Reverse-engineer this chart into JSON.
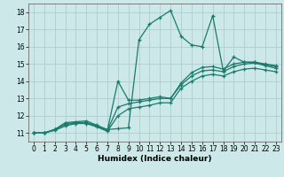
{
  "title": "",
  "xlabel": "Humidex (Indice chaleur)",
  "bg_color": "#cce8e8",
  "line_color": "#1a7a6e",
  "grid_color": "#b0cccc",
  "lines": [
    {
      "x": [
        0,
        1,
        2,
        3,
        4,
        5,
        6,
        7,
        8,
        9,
        10,
        11,
        12,
        13,
        14,
        15,
        16,
        17,
        18,
        19,
        20,
        21,
        22,
        23
      ],
      "y": [
        11,
        11,
        11.2,
        11.6,
        11.65,
        11.7,
        11.45,
        11.2,
        11.25,
        11.3,
        16.4,
        17.3,
        17.7,
        18.1,
        16.6,
        16.1,
        16.0,
        17.8,
        14.6,
        15.4,
        15.1,
        15.1,
        15.0,
        14.9
      ]
    },
    {
      "x": [
        0,
        1,
        2,
        3,
        4,
        5,
        6,
        7,
        8,
        9,
        10,
        11,
        12,
        13,
        14,
        15,
        16,
        17,
        18,
        19,
        20,
        21,
        22,
        23
      ],
      "y": [
        11,
        11,
        11.2,
        11.5,
        11.6,
        11.6,
        11.4,
        11.15,
        14.0,
        12.9,
        12.9,
        13.0,
        13.1,
        13.0,
        13.9,
        14.5,
        14.8,
        14.85,
        14.7,
        15.0,
        15.1,
        15.1,
        14.95,
        14.85
      ]
    },
    {
      "x": [
        0,
        1,
        2,
        3,
        4,
        5,
        6,
        7,
        8,
        9,
        10,
        11,
        12,
        13,
        14,
        15,
        16,
        17,
        18,
        19,
        20,
        21,
        22,
        23
      ],
      "y": [
        11,
        11,
        11.2,
        11.5,
        11.6,
        11.6,
        11.4,
        11.15,
        12.5,
        12.7,
        12.8,
        12.9,
        13.0,
        13.0,
        13.8,
        14.3,
        14.6,
        14.65,
        14.55,
        14.85,
        15.0,
        15.05,
        14.9,
        14.75
      ]
    },
    {
      "x": [
        0,
        1,
        2,
        3,
        4,
        5,
        6,
        7,
        8,
        9,
        10,
        11,
        12,
        13,
        14,
        15,
        16,
        17,
        18,
        19,
        20,
        21,
        22,
        23
      ],
      "y": [
        11,
        11,
        11.15,
        11.4,
        11.55,
        11.55,
        11.35,
        11.1,
        12.0,
        12.4,
        12.5,
        12.6,
        12.75,
        12.75,
        13.6,
        14.0,
        14.3,
        14.4,
        14.3,
        14.55,
        14.7,
        14.75,
        14.65,
        14.55
      ]
    }
  ],
  "xlim": [
    -0.5,
    23.5
  ],
  "ylim": [
    10.5,
    18.5
  ],
  "xticks": [
    0,
    1,
    2,
    3,
    4,
    5,
    6,
    7,
    8,
    9,
    10,
    11,
    12,
    13,
    14,
    15,
    16,
    17,
    18,
    19,
    20,
    21,
    22,
    23
  ],
  "yticks": [
    11,
    12,
    13,
    14,
    15,
    16,
    17,
    18
  ],
  "xlabel_fontsize": 6.5,
  "tick_fontsize": 5.5
}
